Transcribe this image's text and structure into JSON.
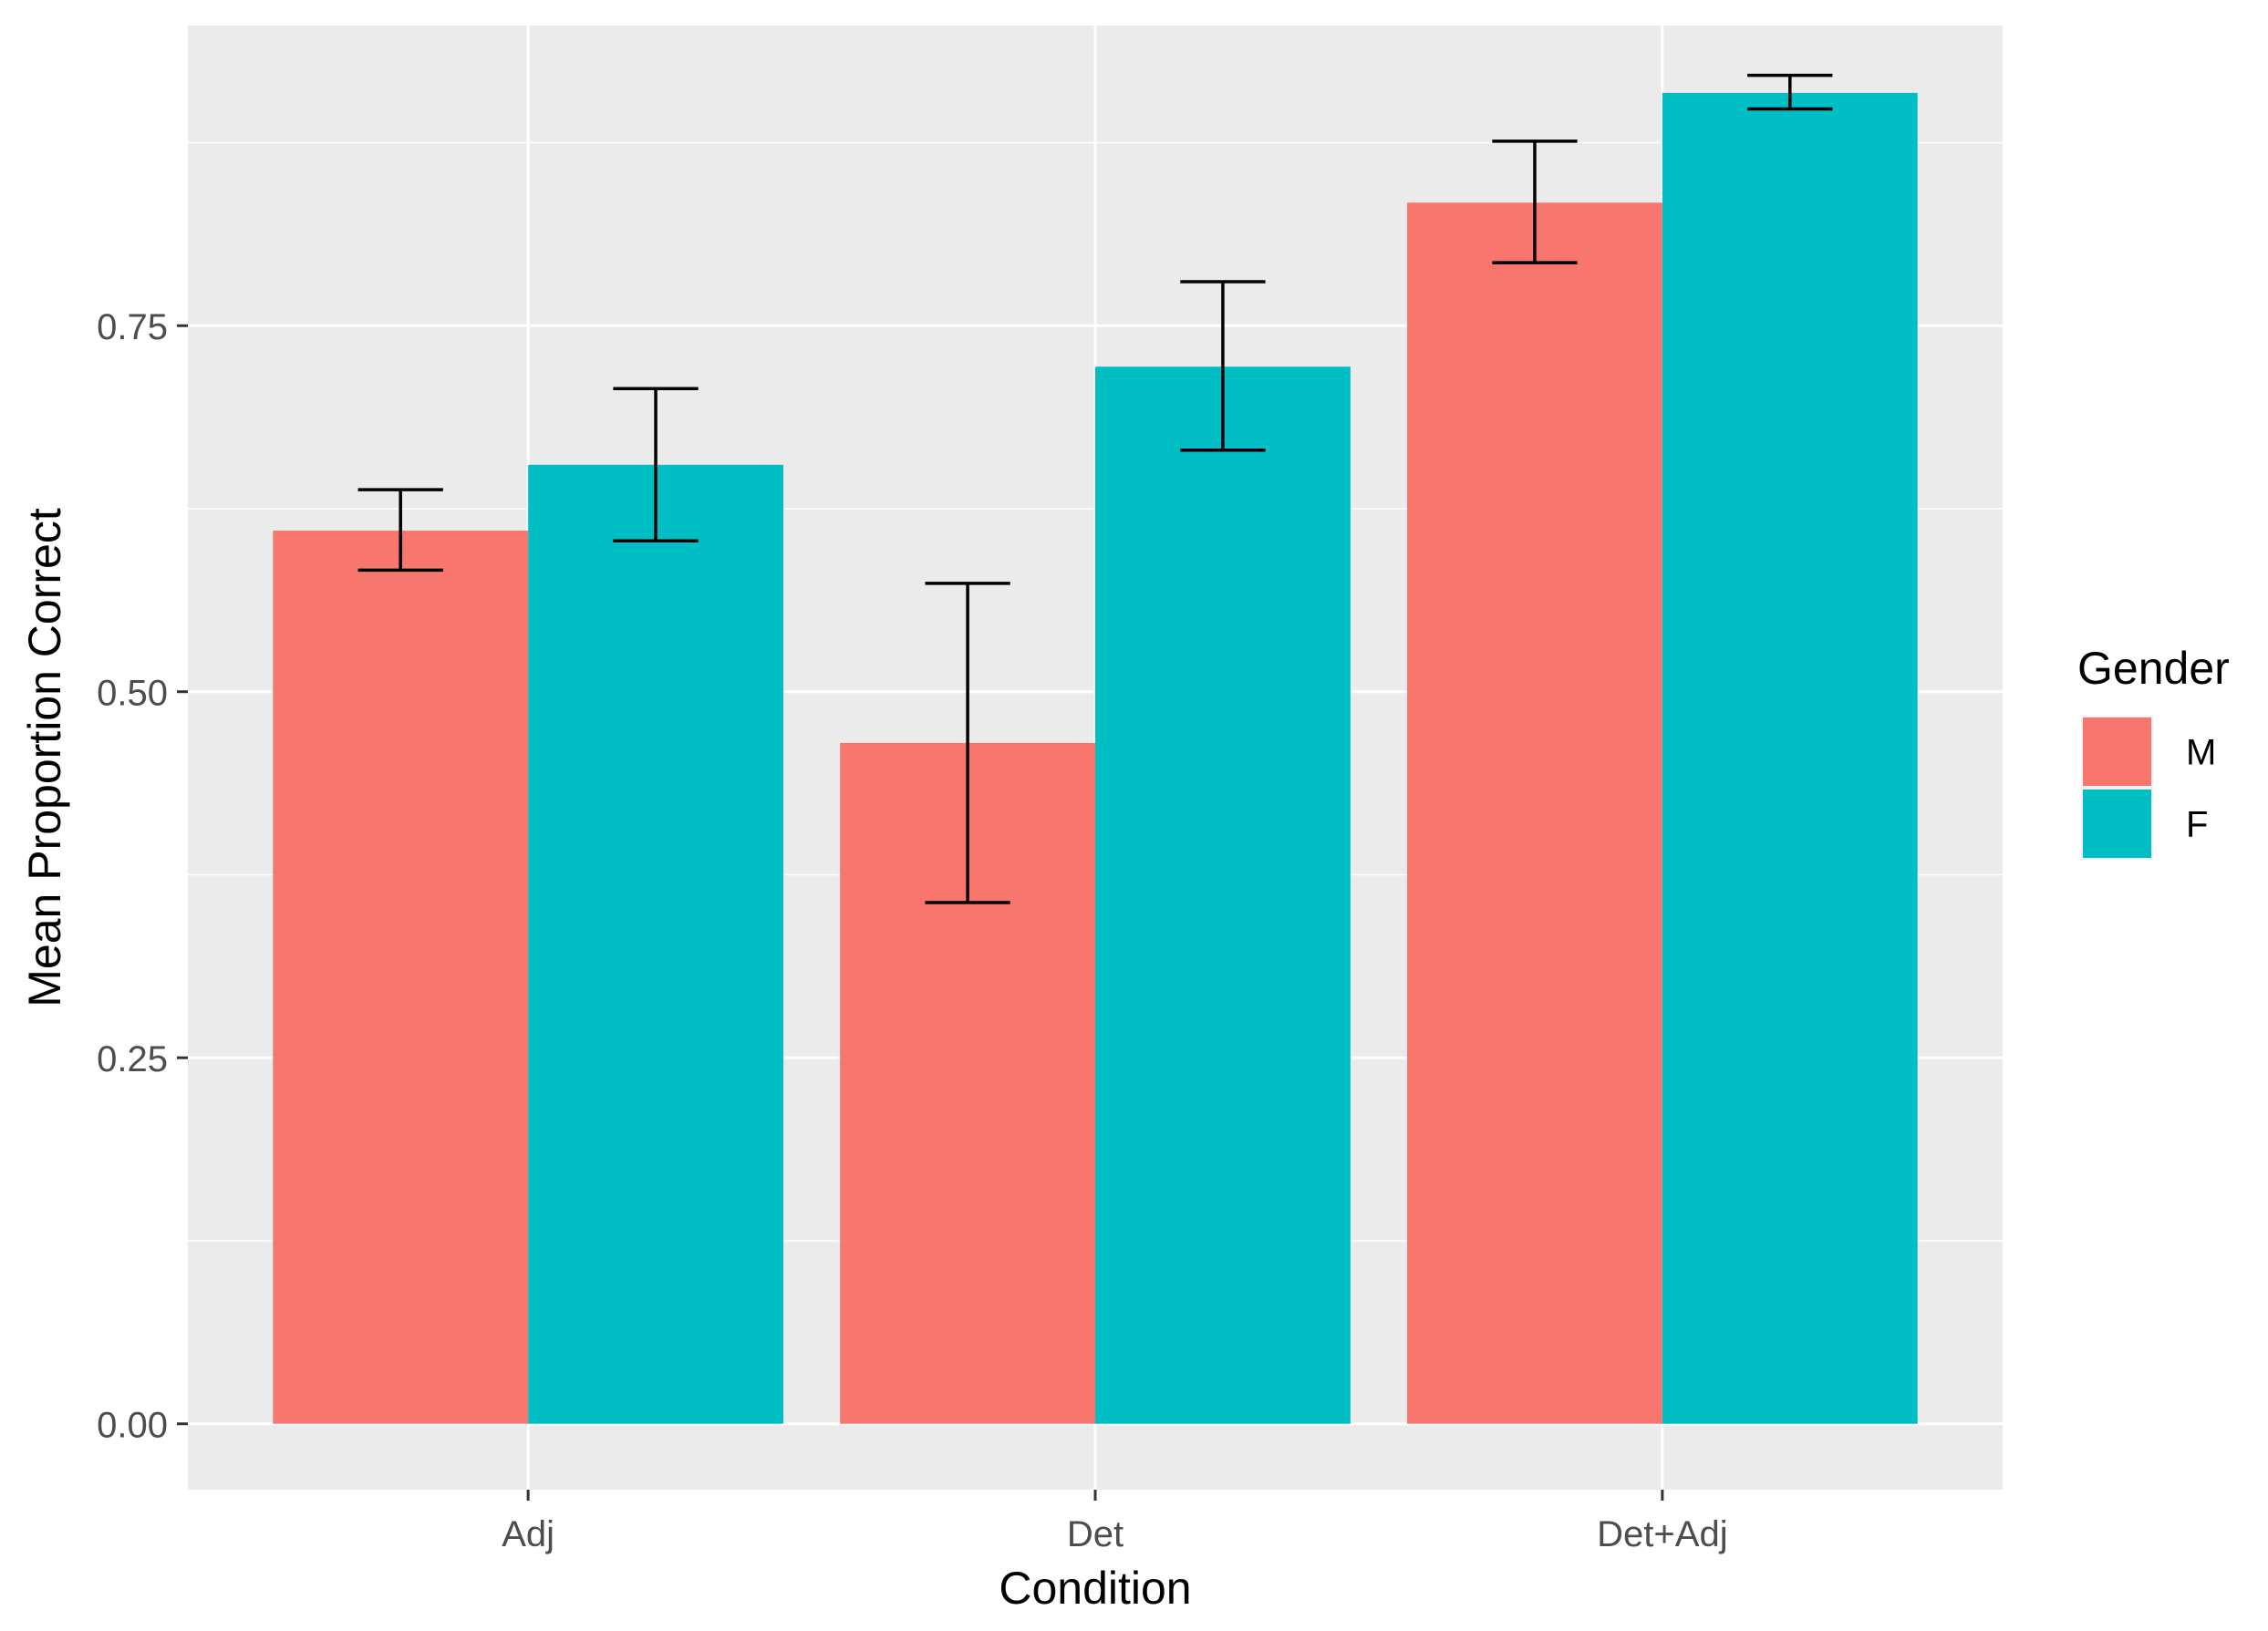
{
  "chart_data": {
    "type": "bar",
    "xlabel": "Condition",
    "ylabel": "Mean Proportion Correct",
    "categories": [
      "Adj",
      "Det",
      "Det+Adj"
    ],
    "ylim": [
      -0.045,
      0.955
    ],
    "y_ticks": [
      0.0,
      0.25,
      0.5,
      0.75
    ],
    "y_tick_labels": [
      "0.00",
      "0.25",
      "0.50",
      "0.75"
    ],
    "grid": true,
    "legend": {
      "title": "Gender",
      "position": "right"
    },
    "series": [
      {
        "name": "M",
        "color": "#F8766D",
        "values": [
          0.61,
          0.465,
          0.834
        ],
        "error_low": [
          0.583,
          0.356,
          0.793
        ],
        "error_high": [
          0.638,
          0.574,
          0.876
        ]
      },
      {
        "name": "F",
        "color": "#00BFC4",
        "values": [
          0.655,
          0.722,
          0.909
        ],
        "error_low": [
          0.603,
          0.665,
          0.898
        ],
        "error_high": [
          0.707,
          0.78,
          0.921
        ]
      }
    ],
    "panel_background": "#EBEBEB",
    "grid_color": "#FFFFFF",
    "error_bar_color": "#000000"
  }
}
